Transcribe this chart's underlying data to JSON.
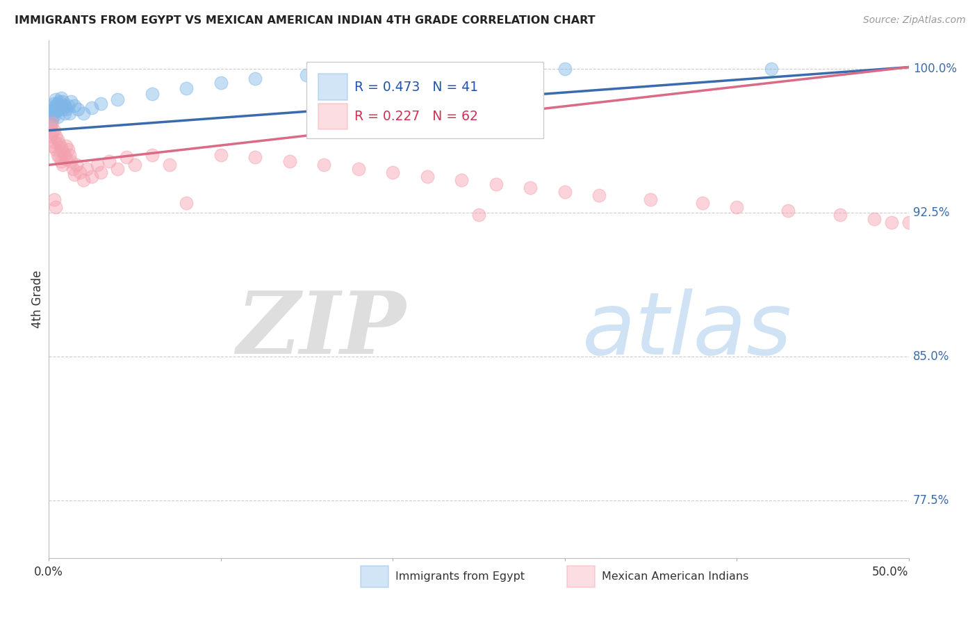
{
  "title": "IMMIGRANTS FROM EGYPT VS MEXICAN AMERICAN INDIAN 4TH GRADE CORRELATION CHART",
  "source": "Source: ZipAtlas.com",
  "ylabel": "4th Grade",
  "ytick_labels": [
    "77.5%",
    "85.0%",
    "92.5%",
    "100.0%"
  ],
  "ytick_values": [
    0.775,
    0.85,
    0.925,
    1.0
  ],
  "xlim": [
    0.0,
    0.5
  ],
  "ylim": [
    0.745,
    1.015
  ],
  "legend_r1": "R = 0.473",
  "legend_n1": "N = 41",
  "legend_r2": "R = 0.227",
  "legend_n2": "N = 62",
  "blue_color": "#7EB6E8",
  "pink_color": "#F4A0AE",
  "blue_line_color": "#3A6BAD",
  "pink_line_color": "#D96B85",
  "watermark_zip": "ZIP",
  "watermark_atlas": "atlas",
  "blue_line_x": [
    0.0,
    0.5
  ],
  "blue_line_y": [
    0.968,
    1.001
  ],
  "pink_line_x": [
    0.0,
    0.5
  ],
  "pink_line_y": [
    0.95,
    1.001
  ],
  "blue_scatter_x": [
    0.001,
    0.001,
    0.001,
    0.002,
    0.002,
    0.002,
    0.003,
    0.003,
    0.003,
    0.004,
    0.004,
    0.004,
    0.005,
    0.005,
    0.005,
    0.006,
    0.006,
    0.007,
    0.007,
    0.008,
    0.008,
    0.009,
    0.009,
    0.01,
    0.011,
    0.012,
    0.013,
    0.015,
    0.017,
    0.02,
    0.025,
    0.03,
    0.04,
    0.06,
    0.08,
    0.1,
    0.12,
    0.15,
    0.2,
    0.3,
    0.42
  ],
  "blue_scatter_y": [
    0.978,
    0.975,
    0.972,
    0.98,
    0.977,
    0.974,
    0.982,
    0.979,
    0.976,
    0.984,
    0.981,
    0.978,
    0.982,
    0.979,
    0.975,
    0.983,
    0.979,
    0.985,
    0.981,
    0.983,
    0.979,
    0.981,
    0.977,
    0.979,
    0.981,
    0.977,
    0.983,
    0.981,
    0.979,
    0.977,
    0.98,
    0.982,
    0.984,
    0.987,
    0.99,
    0.993,
    0.995,
    0.997,
    0.999,
    1.0,
    1.0
  ],
  "pink_scatter_x": [
    0.001,
    0.001,
    0.002,
    0.002,
    0.002,
    0.003,
    0.003,
    0.004,
    0.004,
    0.005,
    0.005,
    0.006,
    0.006,
    0.007,
    0.007,
    0.008,
    0.008,
    0.009,
    0.01,
    0.01,
    0.011,
    0.012,
    0.013,
    0.014,
    0.015,
    0.016,
    0.018,
    0.02,
    0.022,
    0.025,
    0.028,
    0.03,
    0.035,
    0.04,
    0.045,
    0.05,
    0.06,
    0.07,
    0.08,
    0.1,
    0.12,
    0.14,
    0.16,
    0.18,
    0.2,
    0.22,
    0.24,
    0.26,
    0.28,
    0.3,
    0.32,
    0.35,
    0.38,
    0.4,
    0.43,
    0.46,
    0.48,
    0.49,
    0.5,
    0.25,
    0.003,
    0.004
  ],
  "pink_scatter_y": [
    0.97,
    0.965,
    0.972,
    0.967,
    0.96,
    0.968,
    0.962,
    0.965,
    0.958,
    0.963,
    0.955,
    0.961,
    0.954,
    0.959,
    0.952,
    0.957,
    0.95,
    0.955,
    0.96,
    0.953,
    0.958,
    0.955,
    0.952,
    0.948,
    0.945,
    0.95,
    0.946,
    0.942,
    0.948,
    0.944,
    0.95,
    0.946,
    0.952,
    0.948,
    0.954,
    0.95,
    0.955,
    0.95,
    0.93,
    0.955,
    0.954,
    0.952,
    0.95,
    0.948,
    0.946,
    0.944,
    0.942,
    0.94,
    0.938,
    0.936,
    0.934,
    0.932,
    0.93,
    0.928,
    0.926,
    0.924,
    0.922,
    0.92,
    0.92,
    0.924,
    0.932,
    0.928
  ]
}
